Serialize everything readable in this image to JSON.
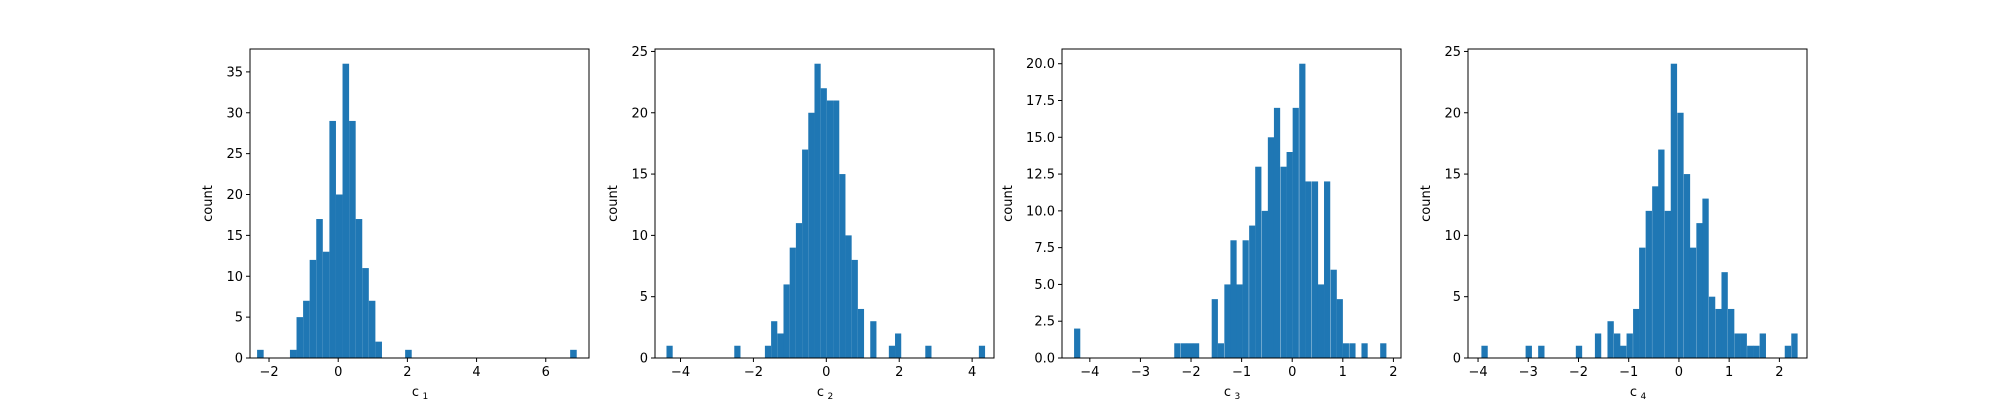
{
  "chart_data": [
    {
      "type": "bar",
      "xlabel": "c",
      "xlabel_sub": "1",
      "ylabel": "count",
      "xlim": [
        -2.55,
        7.25
      ],
      "ylim": [
        0,
        37.8
      ],
      "xticks": [
        -2,
        0,
        2,
        4,
        6
      ],
      "yticks": [
        0,
        5,
        10,
        15,
        20,
        25,
        30,
        35
      ],
      "ytick_labels": [
        "0",
        "5",
        "10",
        "15",
        "20",
        "25",
        "30",
        "35"
      ],
      "color": "#1f77b4",
      "bar_width": 0.19,
      "x": [
        -2.25,
        -1.3,
        -1.11,
        -0.92,
        -0.73,
        -0.54,
        -0.35,
        -0.16,
        0.03,
        0.22,
        0.41,
        0.6,
        0.79,
        0.98,
        1.17,
        2.03,
        6.8
      ],
      "values": [
        1,
        1,
        5,
        7,
        12,
        17,
        13,
        29,
        20,
        36,
        29,
        17,
        11,
        7,
        2,
        1,
        1
      ]
    },
    {
      "type": "bar",
      "xlabel": "c",
      "xlabel_sub": "2",
      "ylabel": "count",
      "xlim": [
        -4.7,
        4.6
      ],
      "ylim": [
        0,
        25.2
      ],
      "xticks": [
        -4,
        -2,
        0,
        2,
        4
      ],
      "yticks": [
        0,
        5,
        10,
        15,
        20,
        25
      ],
      "ytick_labels": [
        "0",
        "5",
        "10",
        "15",
        "20",
        "25"
      ],
      "color": "#1f77b4",
      "bar_width": 0.17,
      "x": [
        -4.3,
        -2.44,
        -1.6,
        -1.43,
        -1.26,
        -1.09,
        -0.92,
        -0.75,
        -0.58,
        -0.41,
        -0.24,
        -0.07,
        0.1,
        0.27,
        0.44,
        0.61,
        0.78,
        0.95,
        1.29,
        1.8,
        1.97,
        2.8,
        4.27
      ],
      "values": [
        1,
        1,
        1,
        3,
        2,
        6,
        9,
        11,
        17,
        20,
        24,
        22,
        21,
        21,
        15,
        10,
        8,
        4,
        3,
        1,
        2,
        1,
        1
      ]
    },
    {
      "type": "bar",
      "xlabel": "c",
      "xlabel_sub": "3",
      "ylabel": "count",
      "xlim": [
        -4.55,
        2.15
      ],
      "ylim": [
        0,
        21
      ],
      "xticks": [
        -4,
        -3,
        -2,
        -1,
        0,
        1,
        2
      ],
      "yticks": [
        0,
        2.5,
        5,
        7.5,
        10,
        12.5,
        15,
        17.5,
        20
      ],
      "ytick_labels": [
        "0.0",
        "2.5",
        "5.0",
        "7.5",
        "10.0",
        "12.5",
        "15.0",
        "17.5",
        "20.0"
      ],
      "color": "#1f77b4",
      "bar_width": 0.123,
      "x": [
        -4.25,
        -2.27,
        -2.14,
        -2.02,
        -1.9,
        -1.53,
        -1.41,
        -1.28,
        -1.16,
        -1.04,
        -0.92,
        -0.79,
        -0.67,
        -0.54,
        -0.42,
        -0.3,
        -0.17,
        -0.05,
        0.07,
        0.2,
        0.32,
        0.45,
        0.57,
        0.69,
        0.82,
        0.94,
        1.06,
        1.19,
        1.43,
        1.8
      ],
      "values": [
        2,
        1,
        1,
        1,
        1,
        4,
        1,
        5,
        8,
        5,
        8,
        9,
        13,
        10,
        15,
        17,
        13,
        14,
        17,
        20,
        12,
        12,
        5,
        12,
        6,
        4,
        1,
        1,
        1,
        1
      ]
    },
    {
      "type": "bar",
      "xlabel": "c",
      "xlabel_sub": "4",
      "ylabel": "count",
      "xlim": [
        -4.2,
        2.55
      ],
      "ylim": [
        0,
        25.2
      ],
      "xticks": [
        -4,
        -3,
        -2,
        -1,
        0,
        1,
        2
      ],
      "yticks": [
        0,
        5,
        10,
        15,
        20,
        25
      ],
      "ytick_labels": [
        "0",
        "5",
        "10",
        "15",
        "20",
        "25"
      ],
      "color": "#1f77b4",
      "bar_width": 0.126,
      "x": [
        -3.87,
        -2.99,
        -2.74,
        -1.99,
        -1.61,
        -1.36,
        -1.23,
        -1.11,
        -0.98,
        -0.85,
        -0.73,
        -0.6,
        -0.47,
        -0.35,
        -0.22,
        -0.1,
        0.03,
        0.16,
        0.28,
        0.41,
        0.53,
        0.66,
        0.79,
        0.91,
        1.04,
        1.17,
        1.29,
        1.42,
        1.54,
        1.67,
        2.17,
        2.3
      ],
      "values": [
        1,
        1,
        1,
        1,
        2,
        3,
        2,
        1,
        2,
        4,
        9,
        12,
        14,
        17,
        12,
        24,
        20,
        15,
        9,
        11,
        13,
        5,
        4,
        7,
        4,
        2,
        2,
        1,
        1,
        2,
        1,
        2
      ]
    }
  ]
}
